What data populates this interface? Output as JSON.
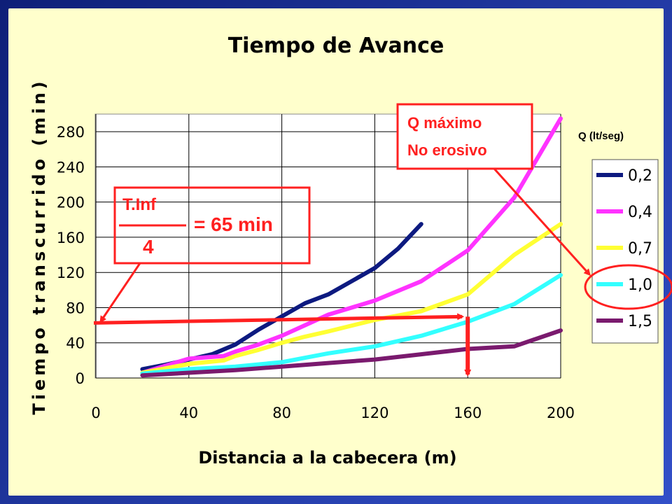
{
  "chart_data": {
    "type": "line",
    "title": "Tiempo de Avance",
    "xlabel": "Distancia a la cabecera (m)",
    "ylabel": "Tiempo transcurrido (min)",
    "xlim": [
      0,
      200
    ],
    "ylim": [
      0,
      300
    ],
    "xticks": [
      0,
      40,
      80,
      120,
      160,
      200
    ],
    "yticks": [
      0,
      40,
      80,
      120,
      160,
      200,
      240,
      280
    ],
    "grid": true,
    "legend_title": "Q (lt/seg)",
    "legend_placement": "right",
    "series": [
      {
        "name": "0,2",
        "color": "#0d1a80",
        "x": [
          20,
          30,
          40,
          50,
          60,
          70,
          80,
          90,
          100,
          110,
          120,
          130,
          140
        ],
        "y": [
          10,
          15,
          21,
          27,
          38,
          55,
          70,
          85,
          95,
          110,
          125,
          147,
          175
        ]
      },
      {
        "name": "0,4",
        "color": "#ff33ff",
        "x": [
          20,
          40,
          55,
          60,
          70,
          80,
          90,
          100,
          110,
          120,
          140,
          160,
          180,
          200
        ],
        "y": [
          6,
          22,
          25,
          30,
          38,
          48,
          60,
          72,
          80,
          88,
          110,
          145,
          205,
          295
        ]
      },
      {
        "name": "0,7",
        "color": "#ffff33",
        "x": [
          20,
          40,
          55,
          60,
          70,
          80,
          90,
          100,
          120,
          140,
          160,
          180,
          200
        ],
        "y": [
          6,
          16,
          20,
          25,
          32,
          40,
          47,
          53,
          66,
          76,
          95,
          140,
          175
        ]
      },
      {
        "name": "1,0",
        "color": "#33ffff",
        "x": [
          20,
          40,
          60,
          80,
          100,
          120,
          140,
          160,
          180,
          200
        ],
        "y": [
          5,
          10,
          13,
          18,
          28,
          36,
          48,
          64,
          84,
          117
        ]
      },
      {
        "name": "1,5",
        "color": "#7a1a6e",
        "x": [
          20,
          40,
          60,
          80,
          100,
          120,
          140,
          160,
          180,
          200
        ],
        "y": [
          3,
          6,
          9,
          13,
          17,
          21,
          27,
          33,
          36,
          54
        ]
      }
    ],
    "annotations": [
      {
        "id": "tinf",
        "numerator": "T.Inf",
        "denominator": "4",
        "equals_text": "= 65 min",
        "target_y": 65,
        "target_x": 160
      },
      {
        "id": "qmax",
        "lines": [
          "Q máximo",
          "No erosivo"
        ],
        "highlighted_series": "1,0"
      }
    ],
    "annotation_color": "#ff2020"
  }
}
